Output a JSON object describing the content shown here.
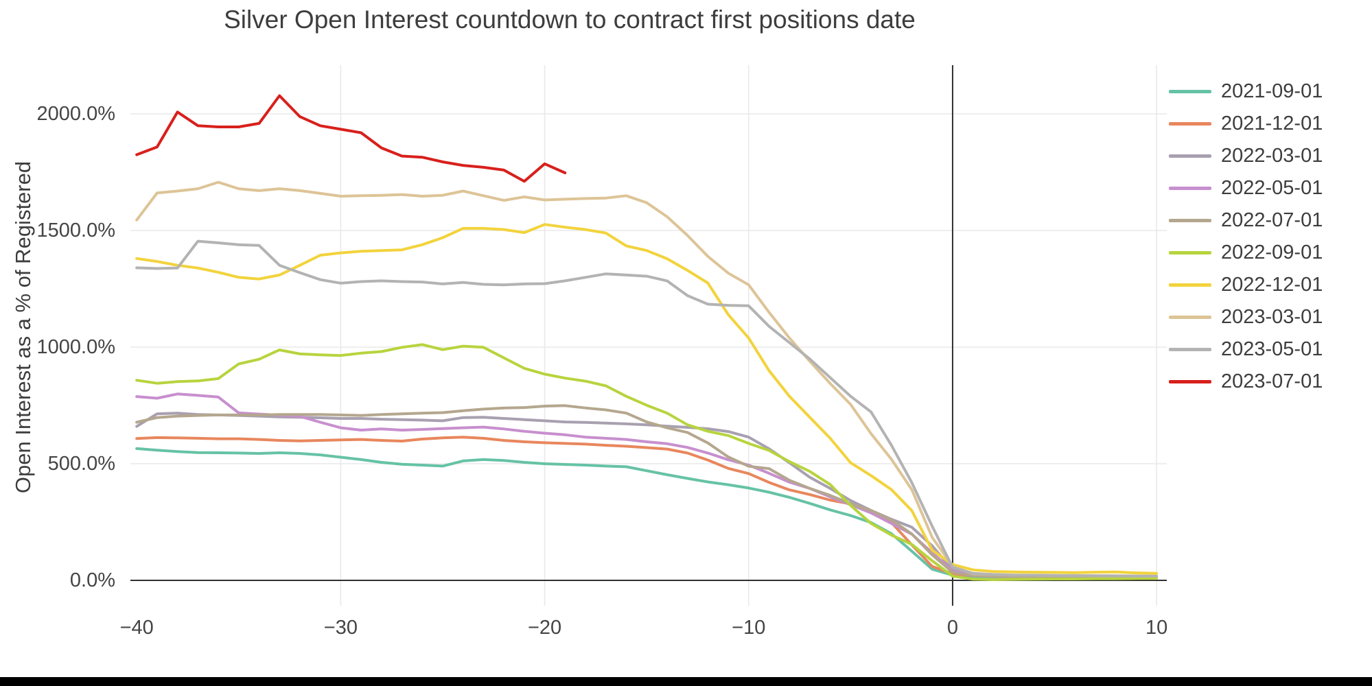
{
  "title": "Silver Open Interest countdown to contract first positions date",
  "y_axis": {
    "title": "Open Interest as a % of Registered",
    "tick_labels": [
      "2000.0%",
      "1500.0%",
      "1000.0%",
      "500.0%",
      "0.0%"
    ],
    "tick_values": [
      2000,
      1500,
      1000,
      500,
      0
    ]
  },
  "x_axis": {
    "tick_labels": [
      "−40",
      "−30",
      "−20",
      "−10",
      "0",
      "10"
    ],
    "tick_values": [
      -40,
      -30,
      -20,
      -10,
      0,
      10
    ]
  },
  "colors": {
    "background": "#ffffff",
    "gridline": "#e9e9e9",
    "zeroline": "#303030",
    "text": "#3d3d3d",
    "bottom_bar": "#000000"
  },
  "chart_data": {
    "type": "line",
    "title": "Silver Open Interest countdown to contract first positions date",
    "xlabel": "",
    "ylabel": "Open Interest as a % of Registered",
    "x_start": -40,
    "x_step": 1,
    "xlim": [
      -40.31,
      10.5
    ],
    "ylim": [
      -109,
      2209
    ],
    "grid": true,
    "legend_position": "right",
    "x_gridlines": [
      -30,
      -20,
      -10,
      10
    ],
    "y_gridlines": [
      500,
      1000,
      1500,
      2000
    ],
    "zerolines": {
      "x": 0,
      "y": 0
    },
    "series": [
      {
        "name": "2021-09-01",
        "color": "#66c2a5",
        "values": [
          565,
          558,
          552,
          548,
          547,
          546,
          544,
          547,
          544,
          538,
          528,
          518,
          506,
          498,
          494,
          490,
          512,
          518,
          514,
          506,
          500,
          497,
          494,
          490,
          487,
          470,
          453,
          437,
          422,
          410,
          396,
          378,
          356,
          330,
          302,
          278,
          248,
          200,
          125,
          48,
          22,
          16,
          14,
          13,
          12,
          12,
          11,
          11,
          10,
          10,
          10
        ]
      },
      {
        "name": "2021-12-01",
        "color": "#e8875d",
        "values": [
          608,
          612,
          611,
          609,
          607,
          607,
          604,
          600,
          598,
          600,
          602,
          604,
          600,
          597,
          606,
          611,
          614,
          609,
          600,
          594,
          590,
          587,
          584,
          579,
          575,
          569,
          563,
          546,
          516,
          480,
          458,
          420,
          388,
          368,
          344,
          328,
          298,
          248,
          152,
          60,
          28,
          20,
          18,
          16,
          15,
          15,
          14,
          14,
          13,
          13,
          12
        ]
      },
      {
        "name": "2022-03-01",
        "color": "#a8a0b0",
        "values": [
          660,
          714,
          717,
          711,
          709,
          707,
          704,
          701,
          699,
          697,
          694,
          694,
          691,
          689,
          687,
          684,
          698,
          699,
          694,
          689,
          684,
          679,
          677,
          674,
          671,
          667,
          661,
          656,
          650,
          638,
          614,
          564,
          504,
          442,
          394,
          342,
          300,
          262,
          228,
          148,
          45,
          20,
          16,
          15,
          14,
          13,
          13,
          12,
          12,
          11,
          11
        ]
      },
      {
        "name": "2022-05-01",
        "color": "#c78fce",
        "values": [
          788,
          781,
          799,
          793,
          786,
          718,
          713,
          708,
          703,
          678,
          654,
          644,
          649,
          644,
          647,
          651,
          654,
          657,
          649,
          639,
          631,
          624,
          614,
          609,
          604,
          594,
          586,
          570,
          546,
          517,
          494,
          459,
          421,
          394,
          358,
          324,
          289,
          244,
          198,
          118,
          40,
          22,
          18,
          16,
          15,
          14,
          14,
          13,
          13,
          12,
          12
        ]
      },
      {
        "name": "2022-07-01",
        "color": "#b4a78e",
        "values": [
          678,
          698,
          704,
          707,
          709,
          709,
          709,
          711,
          711,
          711,
          709,
          707,
          711,
          714,
          717,
          719,
          727,
          734,
          739,
          741,
          747,
          749,
          739,
          731,
          717,
          679,
          654,
          634,
          589,
          529,
          489,
          479,
          429,
          394,
          364,
          329,
          299,
          259,
          199,
          109,
          34,
          20,
          17,
          15,
          14,
          14,
          13,
          13,
          12,
          12,
          12
        ]
      },
      {
        "name": "2022-09-01",
        "color": "#b7d43e",
        "values": [
          858,
          845,
          852,
          855,
          865,
          928,
          948,
          988,
          971,
          967,
          964,
          974,
          981,
          999,
          1011,
          989,
          1004,
          999,
          954,
          909,
          884,
          867,
          854,
          834,
          789,
          751,
          717,
          667,
          639,
          621,
          587,
          557,
          509,
          467,
          411,
          321,
          244,
          194,
          154,
          84,
          18,
          5,
          3,
          4,
          5,
          6,
          6,
          7,
          7,
          8,
          8
        ]
      },
      {
        "name": "2022-12-01",
        "color": "#f2d33c",
        "values": [
          1380,
          1367,
          1351,
          1339,
          1321,
          1299,
          1292,
          1309,
          1351,
          1394,
          1404,
          1411,
          1414,
          1417,
          1439,
          1469,
          1509,
          1509,
          1504,
          1491,
          1526,
          1514,
          1504,
          1489,
          1434,
          1414,
          1379,
          1329,
          1275,
          1139,
          1039,
          899,
          789,
          699,
          609,
          504,
          449,
          389,
          299,
          129,
          68,
          45,
          38,
          36,
          35,
          34,
          33,
          35,
          36,
          32,
          30
        ]
      },
      {
        "name": "2023-03-01",
        "color": "#ddc497",
        "values": [
          1545,
          1661,
          1669,
          1679,
          1707,
          1679,
          1671,
          1679,
          1671,
          1659,
          1647,
          1649,
          1651,
          1654,
          1647,
          1651,
          1669,
          1649,
          1629,
          1644,
          1631,
          1634,
          1637,
          1639,
          1649,
          1619,
          1559,
          1479,
          1389,
          1317,
          1267,
          1149,
          1039,
          939,
          844,
          754,
          629,
          519,
          389,
          184,
          60,
          28,
          25,
          23,
          22,
          21,
          21,
          20,
          20,
          19,
          18
        ]
      },
      {
        "name": "2023-05-01",
        "color": "#b3b3b3",
        "values": [
          1340,
          1337,
          1339,
          1454,
          1447,
          1439,
          1436,
          1351,
          1319,
          1289,
          1274,
          1281,
          1284,
          1281,
          1279,
          1271,
          1277,
          1269,
          1267,
          1271,
          1272,
          1284,
          1299,
          1314,
          1309,
          1304,
          1284,
          1221,
          1184,
          1179,
          1177,
          1089,
          1019,
          949,
          869,
          789,
          722,
          579,
          419,
          232,
          56,
          30,
          25,
          22,
          22,
          21,
          20,
          20,
          19,
          18,
          18
        ]
      },
      {
        "name": "2023-07-01",
        "color": "#d8201c",
        "values": [
          1825,
          1858,
          2008,
          1949,
          1944,
          1944,
          1959,
          2078,
          1988,
          1949,
          1934,
          1919,
          1854,
          1819,
          1814,
          1794,
          1779,
          1771,
          1759,
          1711,
          1786,
          1747
        ]
      }
    ]
  }
}
